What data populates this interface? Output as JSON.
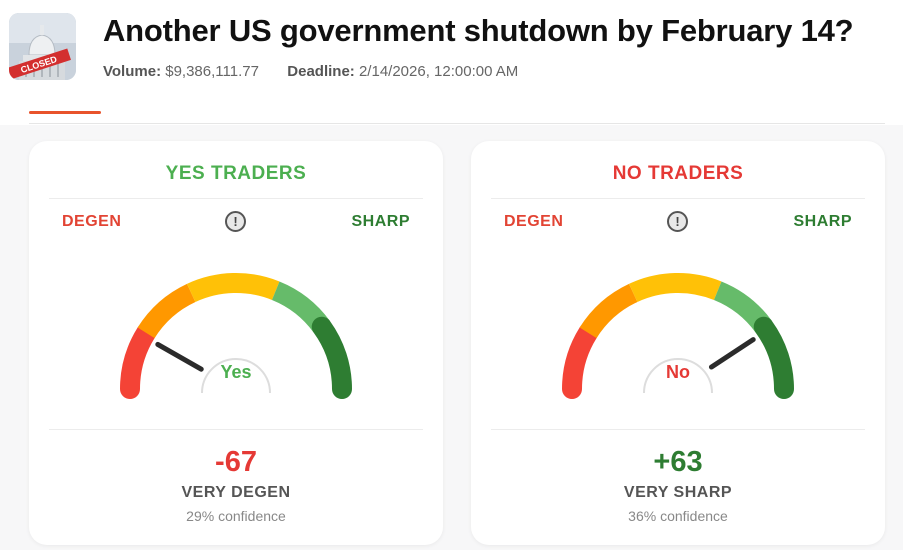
{
  "market": {
    "title": "Another US government shutdown by February 14?",
    "volume_label": "Volume:",
    "volume_value": "$9,386,111.77",
    "deadline_label": "Deadline:",
    "deadline_value": "2/14/2026, 12:00:00 AM",
    "thumbnail_badge": "CLOSED"
  },
  "colors": {
    "degen": "#e24434",
    "sharp": "#2e7d32",
    "yes": "#4caf50",
    "no": "#e53935",
    "tab_accent": "#e8532b"
  },
  "gauge_scale": {
    "min": -100,
    "max": 100
  },
  "cards": [
    {
      "title": "YES TRADERS",
      "title_color": "#4caf50",
      "degen_label": "DEGEN",
      "sharp_label": "SHARP",
      "info_icon": "!",
      "side_label": "Yes",
      "side_color": "#4caf50",
      "score_text": "-67",
      "score_value": -67,
      "score_color": "#e53935",
      "verdict": "VERY DEGEN",
      "confidence": "29% confidence"
    },
    {
      "title": "NO TRADERS",
      "title_color": "#e53935",
      "degen_label": "DEGEN",
      "sharp_label": "SHARP",
      "info_icon": "!",
      "side_label": "No",
      "side_color": "#e53935",
      "score_text": "+63",
      "score_value": 63,
      "score_color": "#2e7d32",
      "verdict": "VERY SHARP",
      "confidence": "36% confidence"
    }
  ]
}
